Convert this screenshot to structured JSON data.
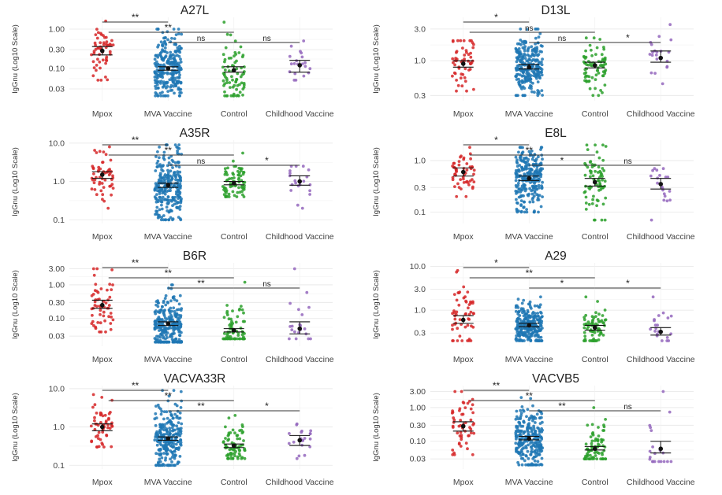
{
  "figure": {
    "ylabel": "IgGnu (Log10 Scale)",
    "groups": [
      "Mpox",
      "MVA Vaccine",
      "Control",
      "Childhood Vaccine"
    ],
    "colors": {
      "Mpox": "#d62728",
      "MVA Vaccine": "#1f77b4",
      "Control": "#2ca02c",
      "Childhood Vaccine": "#9467bd"
    }
  },
  "chart_data": [
    {
      "type": "scatter",
      "title": "A27L",
      "ylabel": "IgGnu (Log10 Scale)",
      "yscale": "log",
      "ylim": [
        0.015,
        2.0
      ],
      "yticks": [
        0.03,
        0.1,
        0.3,
        1.0
      ],
      "ytick_labels": [
        "0.03",
        "0.10",
        "0.30",
        "1.00"
      ],
      "categories": [
        "Mpox",
        "MVA Vaccine",
        "Control",
        "Childhood Vaccine"
      ],
      "series": [
        {
          "name": "Mpox",
          "n": 55,
          "mean": 0.28,
          "ci": [
            0.22,
            0.36
          ],
          "range": [
            0.05,
            1.6
          ]
        },
        {
          "name": "MVA Vaccine",
          "n": 250,
          "mean": 0.1,
          "ci": [
            0.09,
            0.11
          ],
          "range": [
            0.02,
            1.0
          ]
        },
        {
          "name": "Control",
          "n": 75,
          "mean": 0.09,
          "ci": [
            0.08,
            0.11
          ],
          "range": [
            0.02,
            1.5
          ]
        },
        {
          "name": "Childhood Vaccine",
          "n": 20,
          "mean": 0.12,
          "ci": [
            0.08,
            0.16
          ],
          "range": [
            0.05,
            0.5
          ]
        }
      ],
      "comparisons": [
        {
          "from": "Mpox",
          "to": "MVA Vaccine",
          "label": "**"
        },
        {
          "from": "Mpox",
          "to": "Control",
          "label": "**"
        },
        {
          "from": "MVA Vaccine",
          "to": "Control",
          "label": "ns"
        },
        {
          "from": "Control",
          "to": "Childhood Vaccine",
          "label": "ns"
        }
      ]
    },
    {
      "type": "scatter",
      "title": "D13L",
      "ylabel": "IgGnu (Log10 Scale)",
      "yscale": "log",
      "ylim": [
        0.25,
        4.5
      ],
      "yticks": [
        0.3,
        1.0,
        3.0
      ],
      "ytick_labels": [
        "0.3",
        "1.0",
        "3.0"
      ],
      "categories": [
        "Mpox",
        "MVA Vaccine",
        "Control",
        "Childhood Vaccine"
      ],
      "series": [
        {
          "name": "Mpox",
          "n": 55,
          "mean": 0.9,
          "ci": [
            0.8,
            1.0
          ],
          "range": [
            0.35,
            2.0
          ]
        },
        {
          "name": "MVA Vaccine",
          "n": 250,
          "mean": 0.8,
          "ci": [
            0.75,
            0.88
          ],
          "range": [
            0.3,
            3.0
          ]
        },
        {
          "name": "Control",
          "n": 75,
          "mean": 0.85,
          "ci": [
            0.78,
            0.95
          ],
          "range": [
            0.3,
            2.2
          ]
        },
        {
          "name": "Childhood Vaccine",
          "n": 20,
          "mean": 1.1,
          "ci": [
            0.95,
            1.4
          ],
          "range": [
            0.45,
            3.5
          ]
        }
      ],
      "comparisons": [
        {
          "from": "Mpox",
          "to": "MVA Vaccine",
          "label": "*"
        },
        {
          "from": "Mpox",
          "to": "Control",
          "label": "ns"
        },
        {
          "from": "MVA Vaccine",
          "to": "Control",
          "label": "ns"
        },
        {
          "from": "Control",
          "to": "Childhood Vaccine",
          "label": "*"
        }
      ]
    },
    {
      "type": "scatter",
      "title": "A35R",
      "ylabel": "IgGnu (Log10 Scale)",
      "yscale": "log",
      "ylim": [
        0.08,
        12
      ],
      "yticks": [
        0.1,
        1.0,
        10.0
      ],
      "ytick_labels": [
        "0.1",
        "1.0",
        "10.0"
      ],
      "categories": [
        "Mpox",
        "MVA Vaccine",
        "Control",
        "Childhood Vaccine"
      ],
      "series": [
        {
          "name": "Mpox",
          "n": 55,
          "mean": 1.5,
          "ci": [
            1.2,
            1.8
          ],
          "range": [
            0.2,
            8.0
          ]
        },
        {
          "name": "MVA Vaccine",
          "n": 250,
          "mean": 0.8,
          "ci": [
            0.7,
            0.9
          ],
          "range": [
            0.1,
            9.0
          ]
        },
        {
          "name": "Control",
          "n": 75,
          "mean": 0.9,
          "ci": [
            0.82,
            1.0
          ],
          "range": [
            0.4,
            5.5
          ]
        },
        {
          "name": "Childhood Vaccine",
          "n": 20,
          "mean": 1.0,
          "ci": [
            0.8,
            1.4
          ],
          "range": [
            0.2,
            2.5
          ]
        }
      ],
      "comparisons": [
        {
          "from": "Mpox",
          "to": "MVA Vaccine",
          "label": "**"
        },
        {
          "from": "Mpox",
          "to": "Control",
          "label": "**"
        },
        {
          "from": "MVA Vaccine",
          "to": "Control",
          "label": "ns"
        },
        {
          "from": "Control",
          "to": "Childhood Vaccine",
          "label": "*"
        }
      ]
    },
    {
      "type": "scatter",
      "title": "E8L",
      "ylabel": "IgGnu (Log10 Scale)",
      "yscale": "log",
      "ylim": [
        0.06,
        2.5
      ],
      "yticks": [
        0.1,
        0.3,
        1.0
      ],
      "ytick_labels": [
        "0.1",
        "0.3",
        "1.0"
      ],
      "categories": [
        "Mpox",
        "MVA Vaccine",
        "Control",
        "Childhood Vaccine"
      ],
      "series": [
        {
          "name": "Mpox",
          "n": 55,
          "mean": 0.6,
          "ci": [
            0.5,
            0.72
          ],
          "range": [
            0.2,
            1.8
          ]
        },
        {
          "name": "MVA Vaccine",
          "n": 250,
          "mean": 0.45,
          "ci": [
            0.41,
            0.5
          ],
          "range": [
            0.1,
            1.8
          ]
        },
        {
          "name": "Control",
          "n": 75,
          "mean": 0.38,
          "ci": [
            0.32,
            0.45
          ],
          "range": [
            0.07,
            2.0
          ]
        },
        {
          "name": "Childhood Vaccine",
          "n": 20,
          "mean": 0.35,
          "ci": [
            0.28,
            0.45
          ],
          "range": [
            0.07,
            0.7
          ]
        }
      ],
      "comparisons": [
        {
          "from": "Mpox",
          "to": "MVA Vaccine",
          "label": "*"
        },
        {
          "from": "Mpox",
          "to": "Control",
          "label": "**"
        },
        {
          "from": "MVA Vaccine",
          "to": "Control",
          "label": "*"
        },
        {
          "from": "Control",
          "to": "Childhood Vaccine",
          "label": "ns"
        }
      ]
    },
    {
      "type": "scatter",
      "title": "B6R",
      "ylabel": "IgGnu (Log10 Scale)",
      "yscale": "log",
      "ylim": [
        0.015,
        4.5
      ],
      "yticks": [
        0.03,
        0.1,
        0.3,
        1.0,
        3.0
      ],
      "ytick_labels": [
        "0.03",
        "0.10",
        "0.30",
        "1.00",
        "3.00"
      ],
      "categories": [
        "Mpox",
        "MVA Vaccine",
        "Control",
        "Childhood Vaccine"
      ],
      "series": [
        {
          "name": "Mpox",
          "n": 55,
          "mean": 0.25,
          "ci": [
            0.2,
            0.35
          ],
          "range": [
            0.04,
            3.0
          ]
        },
        {
          "name": "MVA Vaccine",
          "n": 250,
          "mean": 0.07,
          "ci": [
            0.062,
            0.08
          ],
          "range": [
            0.02,
            1.0
          ]
        },
        {
          "name": "Control",
          "n": 75,
          "mean": 0.045,
          "ci": [
            0.04,
            0.05
          ],
          "range": [
            0.025,
            1.2
          ]
        },
        {
          "name": "Childhood Vaccine",
          "n": 20,
          "mean": 0.05,
          "ci": [
            0.035,
            0.08
          ],
          "range": [
            0.025,
            3.0
          ]
        }
      ],
      "comparisons": [
        {
          "from": "Mpox",
          "to": "MVA Vaccine",
          "label": "**"
        },
        {
          "from": "Mpox",
          "to": "Control",
          "label": "**"
        },
        {
          "from": "MVA Vaccine",
          "to": "Control",
          "label": "**"
        },
        {
          "from": "Control",
          "to": "Childhood Vaccine",
          "label": "ns"
        }
      ]
    },
    {
      "type": "scatter",
      "title": "A29",
      "ylabel": "IgGnu (Log10 Scale)",
      "yscale": "log",
      "ylim": [
        0.15,
        12
      ],
      "yticks": [
        0.3,
        1.0,
        3.0,
        10.0
      ],
      "ytick_labels": [
        "0.3",
        "1.0",
        "3.0",
        "10.0"
      ],
      "categories": [
        "Mpox",
        "MVA Vaccine",
        "Control",
        "Childhood Vaccine"
      ],
      "series": [
        {
          "name": "Mpox",
          "n": 55,
          "mean": 0.6,
          "ci": [
            0.5,
            0.75
          ],
          "range": [
            0.2,
            8.0
          ]
        },
        {
          "name": "MVA Vaccine",
          "n": 250,
          "mean": 0.45,
          "ci": [
            0.42,
            0.5
          ],
          "range": [
            0.2,
            2.0
          ]
        },
        {
          "name": "Control",
          "n": 75,
          "mean": 0.4,
          "ci": [
            0.35,
            0.45
          ],
          "range": [
            0.2,
            2.0
          ]
        },
        {
          "name": "Childhood Vaccine",
          "n": 20,
          "mean": 0.32,
          "ci": [
            0.27,
            0.4
          ],
          "range": [
            0.2,
            2.0
          ]
        }
      ],
      "comparisons": [
        {
          "from": "Mpox",
          "to": "MVA Vaccine",
          "label": "*"
        },
        {
          "from": "Mpox",
          "to": "Control",
          "label": "**"
        },
        {
          "from": "MVA Vaccine",
          "to": "Control",
          "label": "*"
        },
        {
          "from": "Control",
          "to": "Childhood Vaccine",
          "label": "*"
        }
      ]
    },
    {
      "type": "scatter",
      "title": "VACVA33R",
      "ylabel": "IgGnu (Log10 Scale)",
      "yscale": "log",
      "ylim": [
        0.08,
        12
      ],
      "yticks": [
        0.1,
        1.0,
        10.0
      ],
      "ytick_labels": [
        "0.1",
        "1.0",
        "10.0"
      ],
      "categories": [
        "Mpox",
        "MVA Vaccine",
        "Control",
        "Childhood Vaccine"
      ],
      "series": [
        {
          "name": "Mpox",
          "n": 55,
          "mean": 1.0,
          "ci": [
            0.8,
            1.2
          ],
          "range": [
            0.3,
            7.0
          ]
        },
        {
          "name": "MVA Vaccine",
          "n": 250,
          "mean": 0.5,
          "ci": [
            0.45,
            0.55
          ],
          "range": [
            0.1,
            9.0
          ]
        },
        {
          "name": "Control",
          "n": 75,
          "mean": 0.32,
          "ci": [
            0.29,
            0.36
          ],
          "range": [
            0.15,
            2.0
          ]
        },
        {
          "name": "Childhood Vaccine",
          "n": 20,
          "mean": 0.45,
          "ci": [
            0.33,
            0.6
          ],
          "range": [
            0.15,
            1.2
          ]
        }
      ],
      "comparisons": [
        {
          "from": "Mpox",
          "to": "MVA Vaccine",
          "label": "**"
        },
        {
          "from": "Mpox",
          "to": "Control",
          "label": "**"
        },
        {
          "from": "MVA Vaccine",
          "to": "Control",
          "label": "**"
        },
        {
          "from": "Control",
          "to": "Childhood Vaccine",
          "label": "*"
        }
      ]
    },
    {
      "type": "scatter",
      "title": "VACVB5",
      "ylabel": "IgGnu (Log10 Scale)",
      "yscale": "log",
      "ylim": [
        0.015,
        4.5
      ],
      "yticks": [
        0.03,
        0.1,
        0.3,
        1.0,
        3.0
      ],
      "ytick_labels": [
        "0.03",
        "0.10",
        "0.30",
        "1.00",
        "3.00"
      ],
      "categories": [
        "Mpox",
        "MVA Vaccine",
        "Control",
        "Childhood Vaccine"
      ],
      "series": [
        {
          "name": "Mpox",
          "n": 55,
          "mean": 0.28,
          "ci": [
            0.2,
            0.38
          ],
          "range": [
            0.04,
            3.0
          ]
        },
        {
          "name": "MVA Vaccine",
          "n": 250,
          "mean": 0.12,
          "ci": [
            0.11,
            0.14
          ],
          "range": [
            0.02,
            2.0
          ]
        },
        {
          "name": "Control",
          "n": 75,
          "mean": 0.06,
          "ci": [
            0.055,
            0.07
          ],
          "range": [
            0.03,
            1.0
          ]
        },
        {
          "name": "Childhood Vaccine",
          "n": 20,
          "mean": 0.06,
          "ci": [
            0.045,
            0.1
          ],
          "range": [
            0.025,
            3.0
          ]
        }
      ],
      "comparisons": [
        {
          "from": "Mpox",
          "to": "MVA Vaccine",
          "label": "**"
        },
        {
          "from": "Mpox",
          "to": "Control",
          "label": "**"
        },
        {
          "from": "MVA Vaccine",
          "to": "Control",
          "label": "**"
        },
        {
          "from": "Control",
          "to": "Childhood Vaccine",
          "label": "ns"
        }
      ]
    }
  ]
}
